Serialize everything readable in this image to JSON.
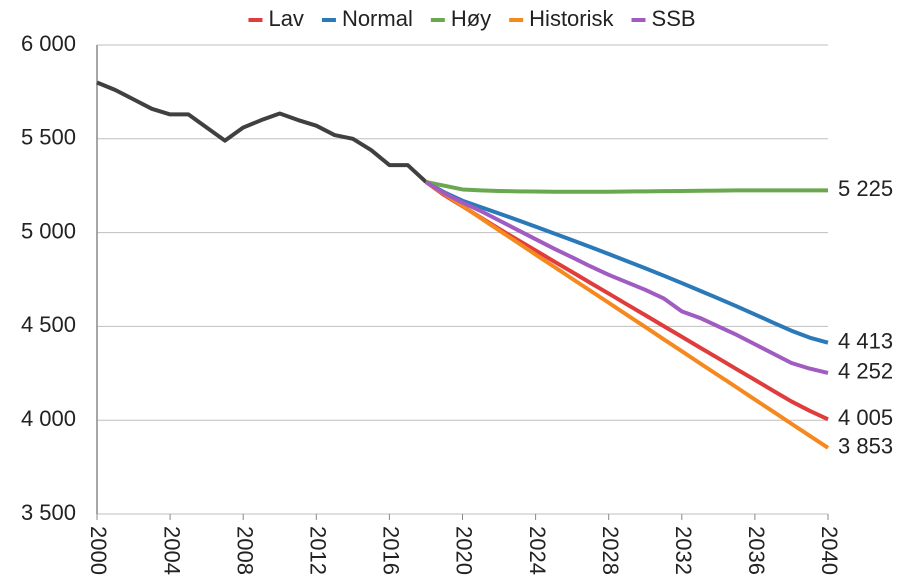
{
  "chart_data": {
    "type": "line",
    "x": [
      2000,
      2001,
      2002,
      2003,
      2004,
      2005,
      2006,
      2007,
      2008,
      2009,
      2010,
      2011,
      2012,
      2013,
      2014,
      2015,
      2016,
      2017,
      2018,
      2019,
      2020,
      2021,
      2022,
      2023,
      2024,
      2025,
      2026,
      2027,
      2028,
      2029,
      2030,
      2031,
      2032,
      2033,
      2034,
      2035,
      2036,
      2037,
      2038,
      2039,
      2040
    ],
    "series": [
      {
        "color": "#404040",
        "values": [
          5800,
          5760,
          5710,
          5660,
          5630,
          5630,
          5560,
          5490,
          5560,
          5600,
          5635,
          5600,
          5570,
          5520,
          5500,
          5440,
          5360,
          5360,
          5270,
          null,
          null,
          null,
          null,
          null,
          null,
          null,
          null,
          null,
          null,
          null,
          null,
          null,
          null,
          null,
          null,
          null,
          null,
          null,
          null,
          null,
          null
        ]
      },
      {
        "name": "Lav",
        "color": "#e03c3c",
        "values": [
          null,
          null,
          null,
          null,
          null,
          null,
          null,
          null,
          null,
          null,
          null,
          null,
          null,
          null,
          null,
          null,
          null,
          null,
          5270,
          5200,
          5140,
          5080,
          5020,
          4962,
          4905,
          4847,
          4790,
          4732,
          4675,
          4617,
          4560,
          4502,
          4445,
          4387,
          4330,
          4272,
          4215,
          4157,
          4100,
          4050,
          4005
        ],
        "value_labels": [
          null,
          null,
          null,
          null,
          null,
          null,
          null,
          null,
          null,
          null,
          null,
          null,
          null,
          null,
          null,
          null,
          null,
          null,
          null,
          null,
          null,
          null,
          null,
          null,
          null,
          null,
          null,
          null,
          null,
          null,
          null,
          null,
          null,
          null,
          null,
          null,
          null,
          null,
          null,
          null,
          "4 005"
        ]
      },
      {
        "name": "Normal",
        "color": "#2a7ab9",
        "values": [
          null,
          null,
          null,
          null,
          null,
          null,
          null,
          null,
          null,
          null,
          null,
          null,
          null,
          null,
          null,
          null,
          null,
          null,
          5270,
          5215,
          5170,
          5136,
          5102,
          5067,
          5032,
          4996,
          4960,
          4923,
          4886,
          4848,
          4810,
          4771,
          4731,
          4690,
          4649,
          4607,
          4564,
          4520,
          4477,
          4440,
          4413
        ],
        "value_labels": [
          null,
          null,
          null,
          null,
          null,
          null,
          null,
          null,
          null,
          null,
          null,
          null,
          null,
          null,
          null,
          null,
          null,
          null,
          null,
          null,
          null,
          null,
          null,
          null,
          null,
          null,
          null,
          null,
          null,
          null,
          null,
          null,
          null,
          null,
          null,
          null,
          null,
          null,
          null,
          null,
          "4 413"
        ]
      },
      {
        "name": "Høy",
        "color": "#6aa84f",
        "values": [
          null,
          null,
          null,
          null,
          null,
          null,
          null,
          null,
          null,
          null,
          null,
          null,
          null,
          null,
          null,
          null,
          null,
          null,
          5270,
          5250,
          5230,
          5225,
          5222,
          5220,
          5219,
          5218,
          5218,
          5218,
          5218,
          5219,
          5220,
          5221,
          5222,
          5223,
          5224,
          5225,
          5225,
          5225,
          5225,
          5225,
          5225
        ],
        "value_labels": [
          null,
          null,
          null,
          null,
          null,
          null,
          null,
          null,
          null,
          null,
          null,
          null,
          null,
          null,
          null,
          null,
          null,
          null,
          null,
          null,
          null,
          null,
          null,
          null,
          null,
          null,
          null,
          null,
          null,
          null,
          null,
          null,
          null,
          null,
          null,
          null,
          null,
          null,
          null,
          null,
          "5 225"
        ]
      },
      {
        "name": "Historisk",
        "color": "#f5891f",
        "values": [
          null,
          null,
          null,
          null,
          null,
          null,
          null,
          null,
          null,
          null,
          null,
          null,
          null,
          null,
          null,
          null,
          null,
          null,
          5270,
          5206,
          5142,
          5077,
          5012,
          4948,
          4883,
          4819,
          4754,
          4690,
          4626,
          4561,
          4497,
          4432,
          4368,
          4303,
          4239,
          4175,
          4110,
          4046,
          3981,
          3917,
          3853
        ],
        "value_labels": [
          null,
          null,
          null,
          null,
          null,
          null,
          null,
          null,
          null,
          null,
          null,
          null,
          null,
          null,
          null,
          null,
          null,
          null,
          null,
          null,
          null,
          null,
          null,
          null,
          null,
          null,
          null,
          null,
          null,
          null,
          null,
          null,
          null,
          null,
          null,
          null,
          null,
          null,
          null,
          null,
          "3 853"
        ]
      },
      {
        "name": "SSB",
        "color": "#a05cc0",
        "values": [
          null,
          null,
          null,
          null,
          null,
          null,
          null,
          null,
          null,
          null,
          null,
          null,
          null,
          null,
          null,
          null,
          null,
          null,
          5270,
          5210,
          5160,
          5115,
          5065,
          5015,
          4965,
          4915,
          4868,
          4820,
          4775,
          4735,
          4695,
          4650,
          4580,
          4545,
          4500,
          4455,
          4405,
          4355,
          4305,
          4275,
          4252
        ],
        "value_labels": [
          null,
          null,
          null,
          null,
          null,
          null,
          null,
          null,
          null,
          null,
          null,
          null,
          null,
          null,
          null,
          null,
          null,
          null,
          null,
          null,
          null,
          null,
          null,
          null,
          null,
          null,
          null,
          null,
          null,
          null,
          null,
          null,
          null,
          null,
          null,
          null,
          null,
          null,
          null,
          null,
          "4 252"
        ]
      }
    ],
    "xlim": [
      2000,
      2040
    ],
    "xticks": [
      2000,
      2004,
      2008,
      2012,
      2016,
      2020,
      2024,
      2028,
      2032,
      2036,
      2040
    ],
    "ylim": [
      3500,
      6000
    ],
    "yticks": [
      {
        "value": 3500,
        "label": "3 500"
      },
      {
        "value": 4000,
        "label": "4 000"
      },
      {
        "value": 4500,
        "label": "4 500"
      },
      {
        "value": 5000,
        "label": "5 000"
      },
      {
        "value": 5500,
        "label": "5 500"
      },
      {
        "value": 6000,
        "label": "6 000"
      }
    ],
    "grid": true,
    "legend": "top"
  }
}
